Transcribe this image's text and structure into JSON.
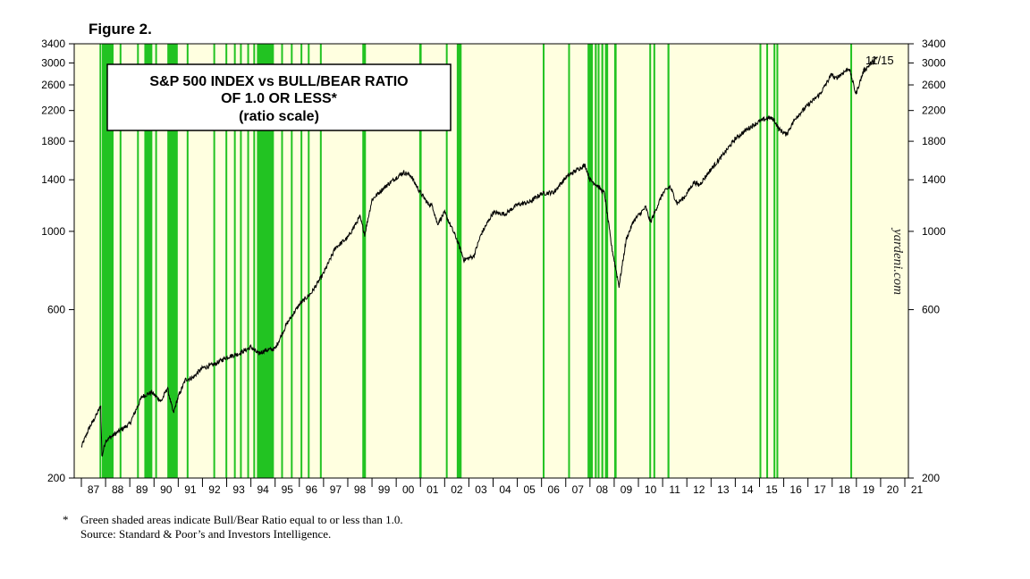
{
  "figure_label": "Figure 2.",
  "footnote": {
    "marker": "*",
    "line1": "Green shaded areas indicate Bull/Bear Ratio equal to or less than 1.0.",
    "line2": "Source: Standard & Poor’s and Investors Intelligence."
  },
  "watermark": "yardeni.com",
  "colors": {
    "plot_background": "#ffffe0",
    "bull_bear_shading": "#22c322",
    "index_line": "#000000"
  },
  "chart_data": {
    "type": "line",
    "title_lines": [
      "S&P 500 INDEX vs BULL/BEAR RATIO",
      "OF 1.0 OR LESS*",
      "(ratio scale)"
    ],
    "y_scale": "log",
    "ylim": [
      200,
      3400
    ],
    "xlim": [
      1987.0,
      2021.0
    ],
    "y_ticks": [
      200,
      600,
      1000,
      1400,
      1800,
      2200,
      2600,
      3000,
      3400
    ],
    "y_axes": "left-and-right",
    "x_tick_labels": [
      "87",
      "88",
      "89",
      "90",
      "91",
      "92",
      "93",
      "94",
      "95",
      "96",
      "97",
      "98",
      "99",
      "00",
      "01",
      "02",
      "03",
      "04",
      "05",
      "06",
      "07",
      "08",
      "09",
      "10",
      "11",
      "12",
      "13",
      "14",
      "15",
      "16",
      "17",
      "18",
      "19",
      "20",
      "21"
    ],
    "last_date_label": "11/15",
    "grid": false,
    "series": [
      {
        "name": "S&P 500 Index",
        "x": [
          1987.0,
          1987.3,
          1987.6,
          1987.8,
          1987.85,
          1988.0,
          1988.5,
          1989.0,
          1989.5,
          1989.9,
          1990.3,
          1990.55,
          1990.8,
          1991.0,
          1991.3,
          1991.6,
          1992.0,
          1992.5,
          1993.0,
          1993.5,
          1994.0,
          1994.3,
          1994.6,
          1995.0,
          1995.5,
          1996.0,
          1996.5,
          1997.0,
          1997.5,
          1998.0,
          1998.5,
          1998.7,
          1999.0,
          1999.5,
          2000.0,
          2000.3,
          2000.6,
          2000.9,
          2001.3,
          2001.5,
          2001.7,
          2002.0,
          2002.5,
          2002.8,
          2003.2,
          2003.5,
          2004.0,
          2004.5,
          2005.0,
          2005.5,
          2006.0,
          2006.5,
          2007.0,
          2007.5,
          2007.8,
          2008.0,
          2008.3,
          2008.6,
          2008.9,
          2009.2,
          2009.5,
          2009.8,
          2010.3,
          2010.5,
          2011.0,
          2011.3,
          2011.6,
          2011.9,
          2012.3,
          2012.5,
          2013.0,
          2013.5,
          2014.0,
          2014.5,
          2015.0,
          2015.4,
          2015.6,
          2015.8,
          2016.1,
          2016.5,
          2017.0,
          2017.5,
          2018.0,
          2018.1,
          2018.7,
          2018.98,
          2019.3,
          2019.6,
          2019.88
        ],
        "values": [
          245,
          275,
          300,
          320,
          230,
          255,
          270,
          285,
          340,
          350,
          330,
          360,
          305,
          340,
          380,
          385,
          410,
          420,
          440,
          450,
          470,
          450,
          460,
          465,
          550,
          620,
          670,
          760,
          900,
          960,
          1100,
          980,
          1230,
          1330,
          1420,
          1470,
          1440,
          1320,
          1200,
          1180,
          1050,
          1130,
          950,
          830,
          850,
          980,
          1130,
          1120,
          1190,
          1210,
          1280,
          1290,
          1420,
          1500,
          1540,
          1400,
          1350,
          1280,
          900,
          700,
          950,
          1070,
          1170,
          1060,
          1280,
          1340,
          1200,
          1250,
          1380,
          1350,
          1500,
          1650,
          1830,
          1950,
          2050,
          2100,
          2070,
          1950,
          1880,
          2100,
          2280,
          2450,
          2800,
          2700,
          2900,
          2450,
          2850,
          2990,
          3120
        ]
      }
    ],
    "shaded_periods": [
      [
        1987.75,
        1987.8
      ],
      [
        1987.85,
        1988.33
      ],
      [
        1988.58,
        1988.65
      ],
      [
        1989.3,
        1989.35
      ],
      [
        1989.6,
        1989.93
      ],
      [
        1990.05,
        1990.1
      ],
      [
        1990.55,
        1990.98
      ],
      [
        1991.35,
        1991.4
      ],
      [
        1992.45,
        1992.5
      ],
      [
        1992.95,
        1993.0
      ],
      [
        1993.3,
        1993.35
      ],
      [
        1993.55,
        1993.6
      ],
      [
        1993.85,
        1993.9
      ],
      [
        1994.1,
        1994.15
      ],
      [
        1994.25,
        1994.95
      ],
      [
        1995.25,
        1995.3
      ],
      [
        1995.65,
        1995.7
      ],
      [
        1996.05,
        1996.1
      ],
      [
        1996.35,
        1996.4
      ],
      [
        1996.85,
        1996.9
      ],
      [
        1998.6,
        1998.75
      ],
      [
        2000.95,
        2001.05
      ],
      [
        2002.05,
        2002.1
      ],
      [
        2002.5,
        2002.7
      ],
      [
        2006.05,
        2006.1
      ],
      [
        2007.1,
        2007.15
      ],
      [
        2007.9,
        2008.12
      ],
      [
        2008.2,
        2008.28
      ],
      [
        2008.32,
        2008.38
      ],
      [
        2008.47,
        2008.55
      ],
      [
        2008.62,
        2008.75
      ],
      [
        2009.0,
        2009.1
      ],
      [
        2010.45,
        2010.5
      ],
      [
        2010.62,
        2010.67
      ],
      [
        2011.2,
        2011.28
      ],
      [
        2015.0,
        2015.05
      ],
      [
        2015.28,
        2015.32
      ],
      [
        2015.58,
        2015.62
      ],
      [
        2015.7,
        2015.75
      ],
      [
        2018.75,
        2018.8
      ]
    ]
  }
}
